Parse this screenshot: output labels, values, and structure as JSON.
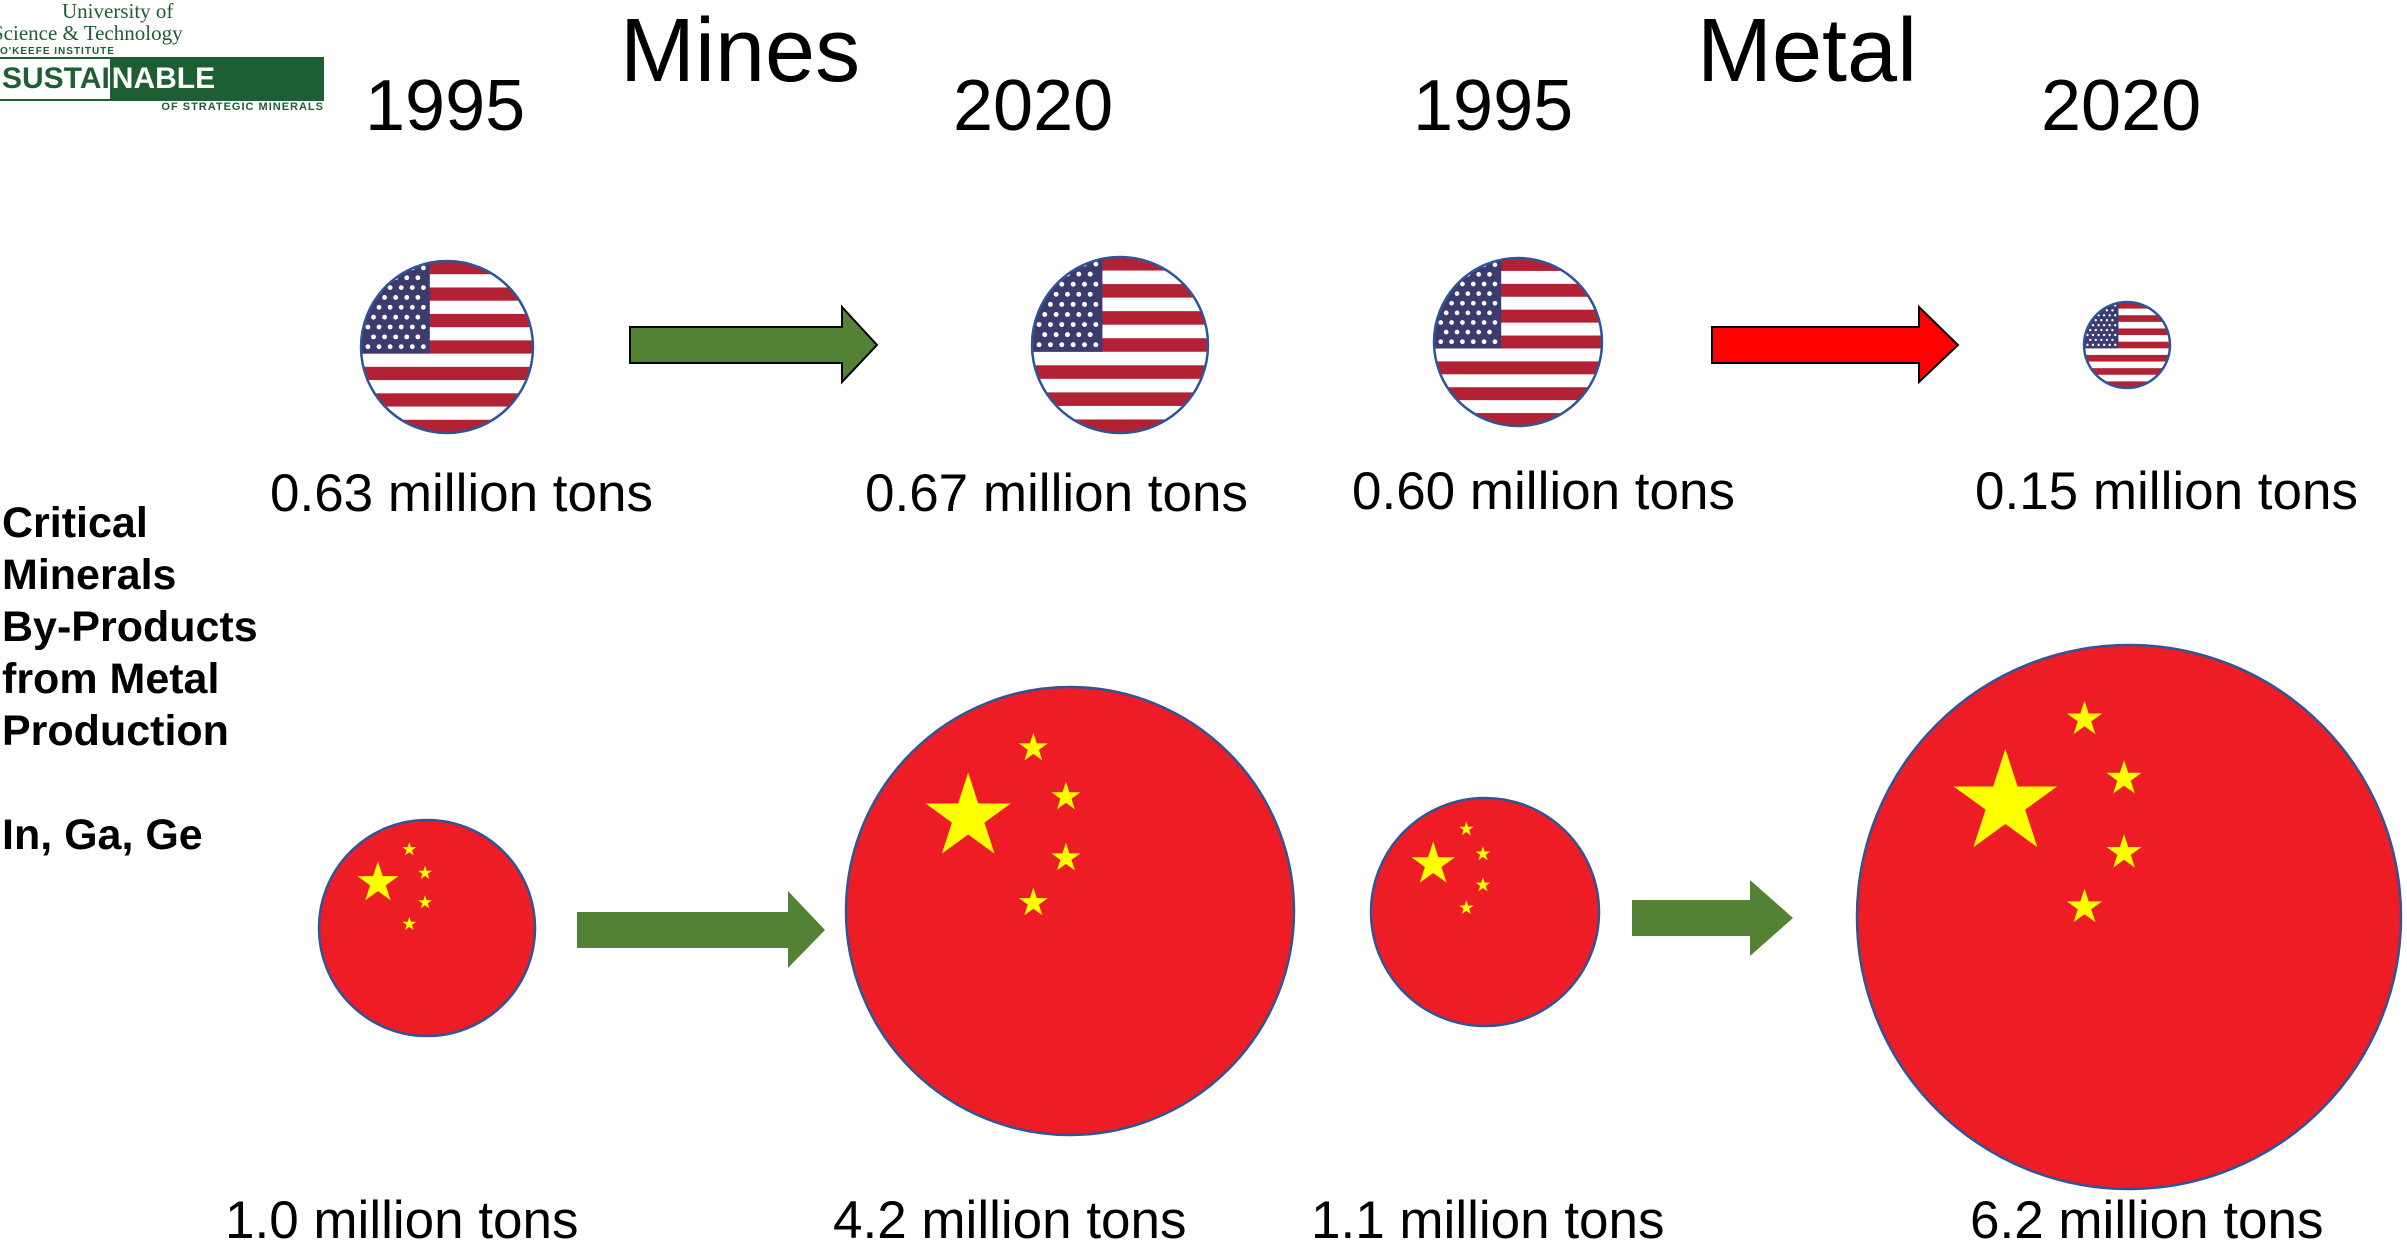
{
  "logo": {
    "university_line1": "University of",
    "university_line2": "Science & Technology",
    "institute": "O'KEEFE INSTITUTE",
    "banner_left": "SUSTAI",
    "banner_right": "NABLE SUPPLY",
    "banner_sub": "OF STRATEGIC MINERALS"
  },
  "headers": {
    "mines": "Mines",
    "metal": "Metal"
  },
  "years": [
    "1995",
    "2020",
    "1995",
    "2020"
  ],
  "sidebar": {
    "lines": [
      "Critical",
      "Minerals",
      "By-Products",
      "from Metal",
      "Production"
    ],
    "elements": "In, Ga, Ge"
  },
  "usa_row": {
    "labels": [
      "0.63 million tons",
      "0.67 million tons",
      "0.60 million tons",
      "0.15 million tons"
    ],
    "values": [
      0.63,
      0.67,
      0.6,
      0.15
    ],
    "arrow_colors": [
      "#548235",
      "#ff0000"
    ]
  },
  "china_row": {
    "labels": [
      "1.0 million tons",
      "4.2 million tons",
      "1.1 million tons",
      "6.2 million tons"
    ],
    "values": [
      1.0,
      4.2,
      1.1,
      6.2
    ],
    "arrow_colors": [
      "#548235",
      "#548235"
    ]
  },
  "colors": {
    "flag_red": "#ee1c25",
    "flag_yellow": "#ffff00",
    "us_red": "#b22234",
    "us_blue": "#3c3b6e",
    "circle_border": "#2f5597",
    "arrow_border": "#000000"
  }
}
